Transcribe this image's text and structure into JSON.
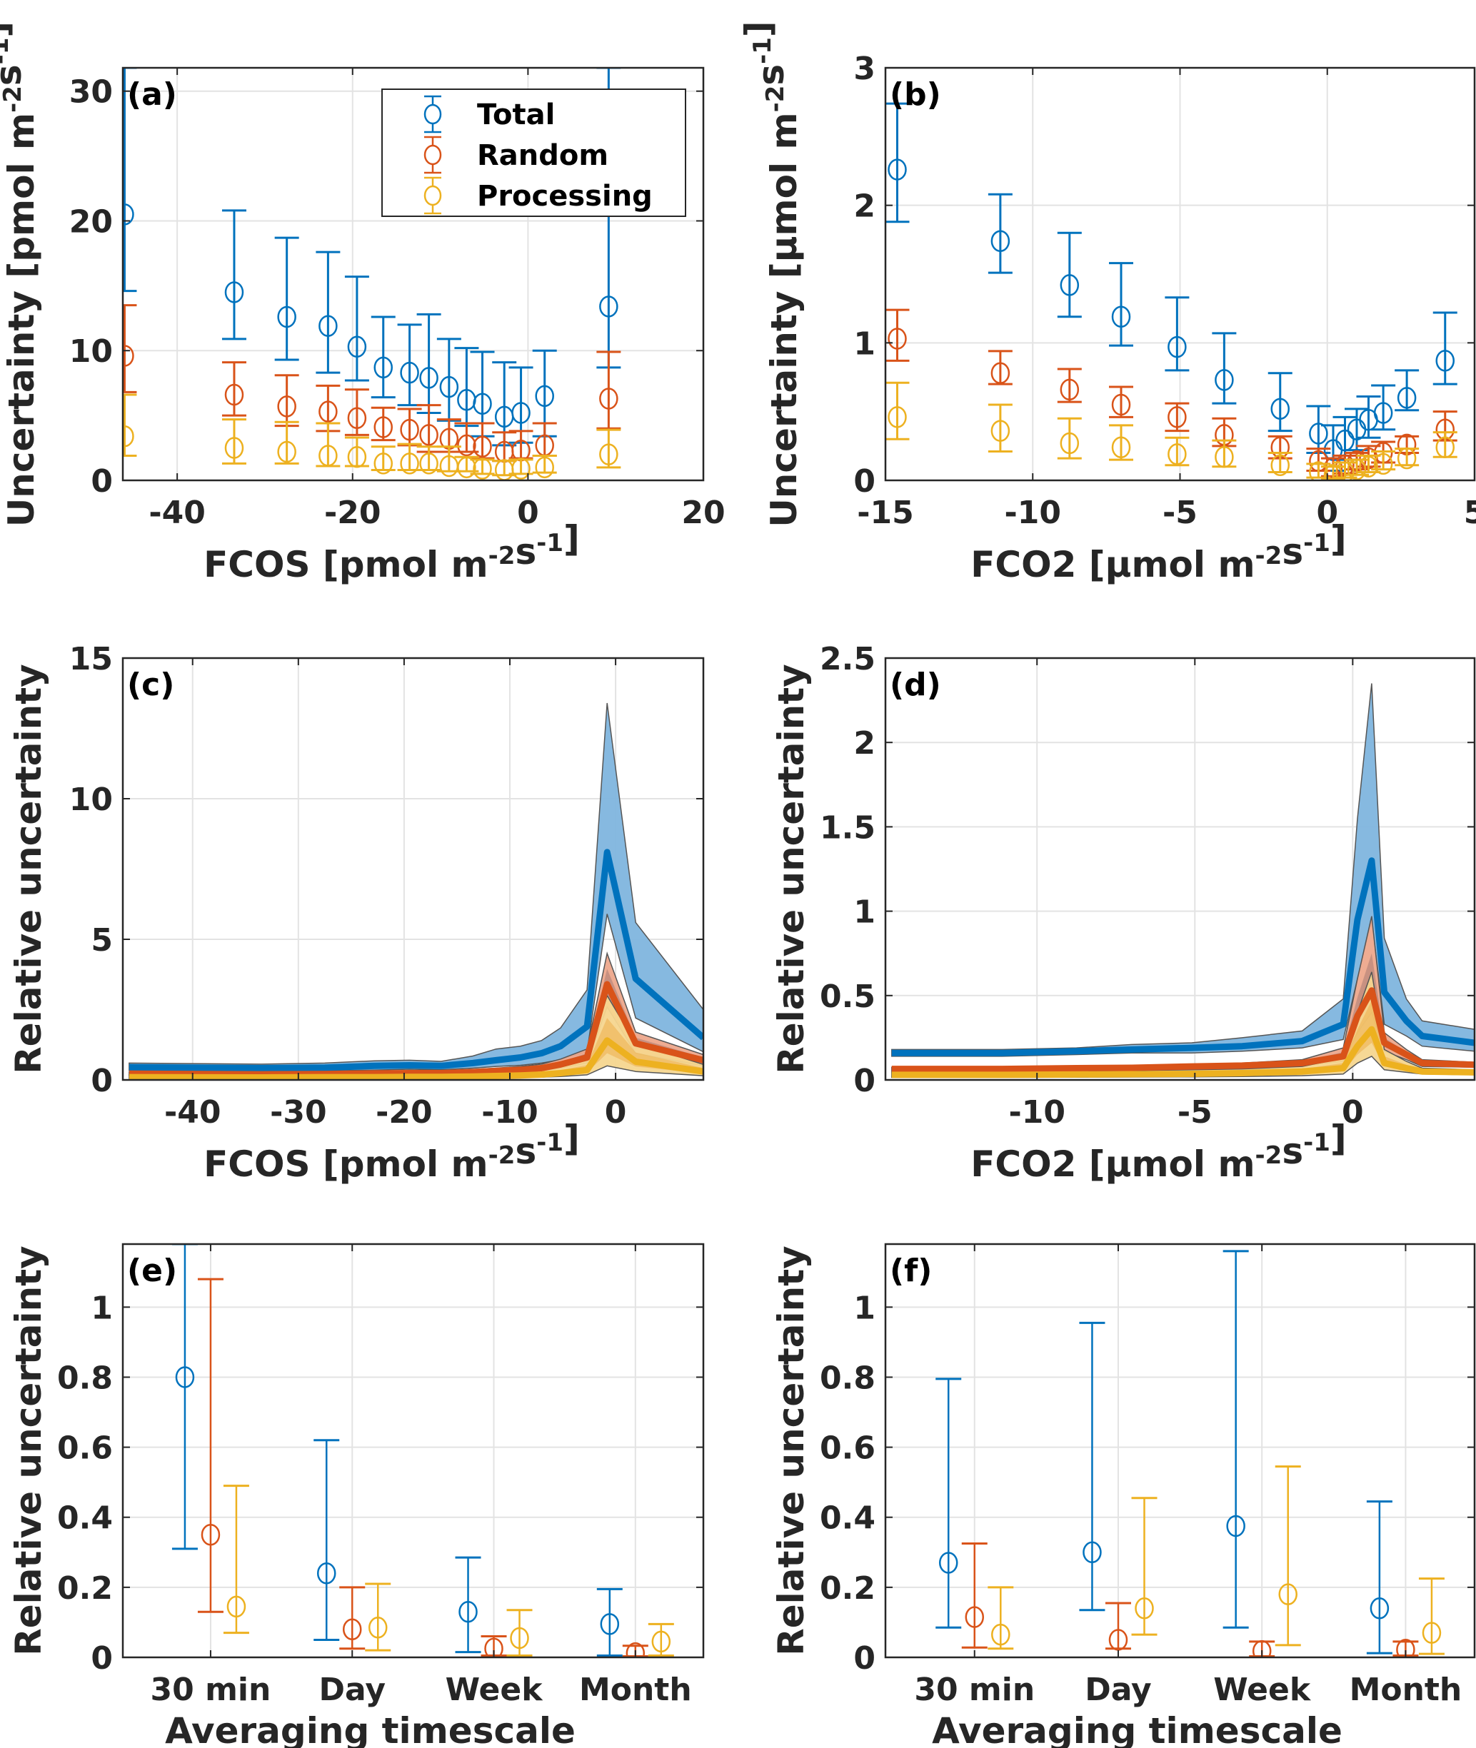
{
  "colors": {
    "total": "#0072BD",
    "random": "#D95319",
    "processing": "#EDB120"
  },
  "legend": {
    "entries": [
      "Total",
      "Random",
      "Processing"
    ],
    "placement": "top-right",
    "panel": "a"
  },
  "chart_data": [
    {
      "id": "a",
      "panel_label": "(a)",
      "type": "scatter",
      "xlabel": "FCOS [pmol m^-2 s^-1]",
      "ylabel": "Uncertainty [pmol m^-2 s^-1]",
      "xlim": [
        -46.2,
        20
      ],
      "ylim": [
        0,
        31.8
      ],
      "grid": true,
      "xticks": [
        -40,
        -20,
        0,
        20
      ],
      "yticks": [
        0,
        10,
        20,
        30
      ],
      "x": [
        -46,
        -33.5,
        -27.5,
        -22.8,
        -19.5,
        -16.5,
        -13.5,
        -11.3,
        -9,
        -7,
        -5.2,
        -2.7,
        -0.8,
        1.9,
        9.2
      ],
      "series": [
        {
          "name": "Total",
          "values": [
            20.5,
            14.5,
            12.6,
            11.9,
            10.3,
            8.7,
            8.3,
            7.9,
            7.2,
            6.2,
            5.9,
            4.9,
            5.2,
            6.5,
            13.4
          ],
          "lower": [
            14.6,
            10.9,
            9.3,
            8.3,
            7.7,
            6.4,
            5.8,
            5.2,
            4.6,
            4.2,
            3.4,
            2.7,
            2.9,
            3.4,
            8.7
          ],
          "upper": [
            31.8,
            20.8,
            18.7,
            17.6,
            15.7,
            12.6,
            12.0,
            12.8,
            10.9,
            10.2,
            9.9,
            9.1,
            8.7,
            10.0,
            31.8
          ]
        },
        {
          "name": "Random",
          "values": [
            9.6,
            6.6,
            5.7,
            5.3,
            4.8,
            4.1,
            3.9,
            3.5,
            3.2,
            2.7,
            2.6,
            2.2,
            2.3,
            2.7,
            6.3
          ],
          "lower": [
            6.8,
            5.0,
            4.2,
            3.8,
            3.5,
            3.1,
            2.7,
            2.2,
            2.2,
            2.2,
            1.7,
            1.5,
            1.7,
            1.9,
            4.0
          ],
          "upper": [
            13.5,
            9.1,
            8.1,
            7.3,
            7.0,
            5.6,
            5.5,
            5.8,
            4.7,
            4.4,
            4.4,
            3.7,
            3.8,
            4.4,
            9.9
          ]
        },
        {
          "name": "Processing",
          "values": [
            3.4,
            2.5,
            2.2,
            1.9,
            1.8,
            1.3,
            1.3,
            1.3,
            1.1,
            1.0,
            0.9,
            0.8,
            0.9,
            1.0,
            2.0
          ],
          "lower": [
            1.9,
            1.3,
            1.3,
            1.1,
            1.1,
            0.8,
            0.8,
            0.8,
            0.7,
            0.7,
            0.5,
            0.4,
            0.5,
            0.6,
            1.0
          ],
          "upper": [
            6.6,
            4.7,
            4.5,
            4.4,
            3.3,
            2.6,
            2.8,
            2.6,
            2.6,
            1.8,
            1.6,
            1.5,
            1.6,
            1.9,
            3.9
          ]
        }
      ]
    },
    {
      "id": "b",
      "panel_label": "(b)",
      "type": "scatter",
      "xlabel": "FCO2 [µmol m^-2 s^-1]",
      "ylabel": "Uncertainty [µmol m^-2 s^-1]",
      "xlim": [
        -15,
        5
      ],
      "ylim": [
        0,
        3
      ],
      "grid": true,
      "xticks": [
        -15,
        -10,
        -5,
        0,
        5
      ],
      "yticks": [
        0,
        1,
        2,
        3
      ],
      "x": [
        -14.6,
        -11.1,
        -8.75,
        -7.0,
        -5.1,
        -3.5,
        -1.6,
        -0.3,
        0.2,
        0.6,
        1.0,
        1.4,
        1.9,
        2.7,
        4.0
      ],
      "series": [
        {
          "name": "Total",
          "values": [
            2.26,
            1.74,
            1.42,
            1.19,
            0.97,
            0.73,
            0.52,
            0.34,
            0.22,
            0.29,
            0.37,
            0.44,
            0.49,
            0.6,
            0.87
          ],
          "lower": [
            1.88,
            1.51,
            1.19,
            0.98,
            0.8,
            0.56,
            0.36,
            0.2,
            0.07,
            0.15,
            0.22,
            0.31,
            0.37,
            0.51,
            0.7
          ],
          "upper": [
            2.74,
            2.08,
            1.8,
            1.58,
            1.33,
            1.07,
            0.78,
            0.54,
            0.4,
            0.46,
            0.52,
            0.61,
            0.69,
            0.8,
            1.22
          ]
        },
        {
          "name": "Random",
          "values": [
            1.03,
            0.78,
            0.66,
            0.55,
            0.46,
            0.33,
            0.24,
            0.14,
            0.09,
            0.11,
            0.14,
            0.16,
            0.2,
            0.26,
            0.37
          ],
          "lower": [
            0.87,
            0.7,
            0.57,
            0.46,
            0.36,
            0.25,
            0.16,
            0.07,
            0.03,
            0.05,
            0.08,
            0.1,
            0.13,
            0.2,
            0.29
          ],
          "upper": [
            1.24,
            0.94,
            0.81,
            0.68,
            0.56,
            0.45,
            0.32,
            0.23,
            0.16,
            0.18,
            0.2,
            0.25,
            0.28,
            0.32,
            0.5
          ]
        },
        {
          "name": "Processing",
          "values": [
            0.46,
            0.36,
            0.27,
            0.24,
            0.19,
            0.17,
            0.11,
            0.06,
            0.04,
            0.06,
            0.08,
            0.1,
            0.12,
            0.16,
            0.24
          ],
          "lower": [
            0.3,
            0.21,
            0.16,
            0.15,
            0.11,
            0.1,
            0.06,
            0.02,
            0.01,
            0.02,
            0.04,
            0.06,
            0.08,
            0.11,
            0.17
          ],
          "upper": [
            0.71,
            0.55,
            0.45,
            0.4,
            0.31,
            0.29,
            0.2,
            0.12,
            0.1,
            0.13,
            0.15,
            0.18,
            0.21,
            0.23,
            0.35
          ]
        }
      ]
    },
    {
      "id": "c",
      "panel_label": "(c)",
      "type": "area",
      "xlabel": "FCOS [pmol m^-2 s^-1]",
      "ylabel": "Relative uncertainty",
      "xlim": [
        -46.6,
        8.3
      ],
      "ylim": [
        0,
        15
      ],
      "grid": true,
      "xticks": [
        -40,
        -30,
        -20,
        -10,
        0
      ],
      "yticks": [
        0,
        5,
        10,
        15
      ],
      "x": [
        -46,
        -33.5,
        -27.5,
        -22.8,
        -19.5,
        -16.5,
        -13.5,
        -11.3,
        -9,
        -7,
        -5.2,
        -2.7,
        -0.8,
        1.9,
        8.3
      ],
      "series": [
        {
          "name": "Total",
          "values": [
            0.45,
            0.42,
            0.44,
            0.5,
            0.52,
            0.5,
            0.6,
            0.7,
            0.8,
            0.95,
            1.2,
            1.9,
            8.1,
            3.6,
            1.5
          ],
          "lower": [
            0.33,
            0.31,
            0.32,
            0.35,
            0.38,
            0.36,
            0.42,
            0.48,
            0.52,
            0.6,
            0.72,
            1.0,
            5.9,
            2.2,
            1.0
          ],
          "upper": [
            0.6,
            0.56,
            0.6,
            0.68,
            0.7,
            0.66,
            0.85,
            1.1,
            1.2,
            1.4,
            1.85,
            3.2,
            13.4,
            5.6,
            2.5
          ]
        },
        {
          "name": "Random",
          "values": [
            0.22,
            0.2,
            0.21,
            0.23,
            0.24,
            0.24,
            0.28,
            0.32,
            0.36,
            0.42,
            0.55,
            0.8,
            3.4,
            1.3,
            0.7
          ],
          "lower": [
            0.17,
            0.16,
            0.17,
            0.18,
            0.19,
            0.19,
            0.22,
            0.25,
            0.28,
            0.33,
            0.42,
            0.6,
            2.6,
            0.95,
            0.5
          ],
          "upper": [
            0.28,
            0.26,
            0.27,
            0.3,
            0.32,
            0.32,
            0.37,
            0.42,
            0.48,
            0.56,
            0.74,
            1.1,
            4.5,
            1.7,
            0.9
          ]
        },
        {
          "name": "Processing",
          "values": [
            0.1,
            0.09,
            0.1,
            0.1,
            0.11,
            0.11,
            0.12,
            0.14,
            0.16,
            0.19,
            0.24,
            0.35,
            1.4,
            0.65,
            0.3
          ],
          "lower": [
            0.05,
            0.05,
            0.05,
            0.06,
            0.06,
            0.06,
            0.07,
            0.08,
            0.09,
            0.1,
            0.12,
            0.18,
            0.5,
            0.3,
            0.15
          ],
          "upper": [
            0.18,
            0.17,
            0.18,
            0.19,
            0.2,
            0.2,
            0.22,
            0.26,
            0.3,
            0.36,
            0.46,
            0.7,
            3.0,
            1.3,
            0.55
          ]
        }
      ]
    },
    {
      "id": "d",
      "panel_label": "(d)",
      "type": "area",
      "xlabel": "FCO2 [µmol m^-2 s^-1]",
      "ylabel": "Relative uncertainty",
      "xlim": [
        -14.8,
        3.86
      ],
      "ylim": [
        0,
        2.5
      ],
      "grid": true,
      "xticks": [
        -10,
        -5,
        0
      ],
      "yticks": [
        0,
        0.5,
        1,
        1.5,
        2,
        2.5
      ],
      "x": [
        -14.6,
        -11.1,
        -8.75,
        -7.0,
        -5.1,
        -3.5,
        -1.6,
        -0.3,
        0.15,
        0.6,
        1.0,
        1.7,
        2.2,
        3.86
      ],
      "series": [
        {
          "name": "Total",
          "values": [
            0.16,
            0.16,
            0.17,
            0.18,
            0.19,
            0.2,
            0.23,
            0.33,
            0.95,
            1.3,
            0.52,
            0.35,
            0.26,
            0.22
          ],
          "lower": [
            0.14,
            0.14,
            0.15,
            0.16,
            0.16,
            0.17,
            0.19,
            0.24,
            0.6,
            0.95,
            0.33,
            0.26,
            0.2,
            0.17
          ],
          "upper": [
            0.18,
            0.18,
            0.19,
            0.21,
            0.22,
            0.25,
            0.29,
            0.48,
            1.55,
            2.35,
            0.84,
            0.48,
            0.35,
            0.3
          ]
        },
        {
          "name": "Random",
          "values": [
            0.065,
            0.065,
            0.07,
            0.072,
            0.08,
            0.085,
            0.1,
            0.14,
            0.38,
            0.53,
            0.22,
            0.15,
            0.1,
            0.09
          ],
          "lower": [
            0.055,
            0.055,
            0.06,
            0.062,
            0.068,
            0.072,
            0.085,
            0.11,
            0.28,
            0.4,
            0.17,
            0.12,
            0.08,
            0.075
          ],
          "upper": [
            0.075,
            0.075,
            0.08,
            0.085,
            0.092,
            0.1,
            0.12,
            0.19,
            0.6,
            0.97,
            0.28,
            0.18,
            0.12,
            0.105
          ]
        },
        {
          "name": "Processing",
          "values": [
            0.03,
            0.03,
            0.032,
            0.034,
            0.036,
            0.04,
            0.05,
            0.07,
            0.2,
            0.3,
            0.1,
            0.07,
            0.05,
            0.045
          ],
          "lower": [
            0.015,
            0.015,
            0.016,
            0.017,
            0.018,
            0.02,
            0.025,
            0.035,
            0.1,
            0.14,
            0.06,
            0.045,
            0.035,
            0.03
          ],
          "upper": [
            0.05,
            0.05,
            0.052,
            0.055,
            0.06,
            0.065,
            0.08,
            0.13,
            0.4,
            0.64,
            0.18,
            0.11,
            0.07,
            0.06
          ]
        }
      ]
    },
    {
      "id": "e",
      "panel_label": "(e)",
      "type": "scatter",
      "xlabel": "Averaging timescale",
      "ylabel": "Relative uncertainty",
      "ylim": [
        0,
        1.18
      ],
      "grid": true,
      "categories": [
        "30 min",
        "Day",
        "Week",
        "Month"
      ],
      "yticks": [
        0,
        0.2,
        0.4,
        0.6,
        0.8,
        1
      ],
      "series": [
        {
          "name": "Total",
          "values": [
            0.8,
            0.24,
            0.13,
            0.095
          ],
          "lower": [
            0.31,
            0.05,
            0.015,
            0.005
          ],
          "upper": [
            1.18,
            0.62,
            0.285,
            0.195
          ]
        },
        {
          "name": "Random",
          "values": [
            0.35,
            0.08,
            0.025,
            0.012
          ],
          "lower": [
            0.13,
            0.025,
            0.005,
            0.003
          ],
          "upper": [
            1.08,
            0.2,
            0.06,
            0.033
          ]
        },
        {
          "name": "Processing",
          "values": [
            0.145,
            0.085,
            0.055,
            0.045
          ],
          "lower": [
            0.07,
            0.02,
            0.005,
            0.005
          ],
          "upper": [
            0.49,
            0.21,
            0.135,
            0.095
          ]
        }
      ]
    },
    {
      "id": "f",
      "panel_label": "(f)",
      "type": "scatter",
      "xlabel": "Averaging timescale",
      "ylabel": "Relative uncertainty",
      "ylim": [
        0,
        1.18
      ],
      "grid": true,
      "categories": [
        "30 min",
        "Day",
        "Week",
        "Month"
      ],
      "yticks": [
        0,
        0.2,
        0.4,
        0.6,
        0.8,
        1
      ],
      "series": [
        {
          "name": "Total",
          "values": [
            0.27,
            0.3,
            0.375,
            0.14
          ],
          "lower": [
            0.085,
            0.135,
            0.085,
            0.012
          ],
          "upper": [
            0.795,
            0.955,
            1.16,
            0.445
          ]
        },
        {
          "name": "Random",
          "values": [
            0.115,
            0.05,
            0.018,
            0.022
          ],
          "lower": [
            0.028,
            0.025,
            0.003,
            0.005
          ],
          "upper": [
            0.325,
            0.155,
            0.045,
            0.045
          ]
        },
        {
          "name": "Processing",
          "values": [
            0.065,
            0.14,
            0.18,
            0.07
          ],
          "lower": [
            0.025,
            0.065,
            0.035,
            0.01
          ],
          "upper": [
            0.2,
            0.455,
            0.545,
            0.225
          ]
        }
      ]
    }
  ]
}
